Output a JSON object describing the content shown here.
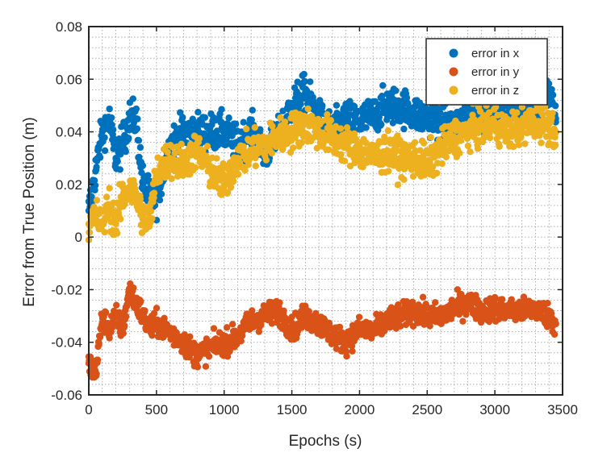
{
  "chart_data": {
    "type": "scatter",
    "title": "",
    "xlabel": "Epochs (s)",
    "ylabel": "Error from True Position (m)",
    "xlim": [
      0,
      3500
    ],
    "ylim": [
      -0.06,
      0.08
    ],
    "xticks": [
      0,
      500,
      1000,
      1500,
      2000,
      2500,
      3000,
      3500
    ],
    "xtick_labels": [
      "0",
      "500",
      "1000",
      "1500",
      "2000",
      "2500",
      "3000",
      "3500"
    ],
    "yticks": [
      -0.06,
      -0.04,
      -0.02,
      0,
      0.02,
      0.04,
      0.06,
      0.08
    ],
    "ytick_labels": [
      "-0.06",
      "-0.04",
      "-0.02",
      "0",
      "0.02",
      "0.04",
      "0.06",
      "0.08"
    ],
    "grid": "dotted, major and minor",
    "legend_position": "top-right",
    "series": [
      {
        "name": "error in x",
        "color": "#0072BD",
        "x": [
          0,
          50,
          100,
          150,
          200,
          250,
          300,
          350,
          400,
          450,
          500,
          600,
          700,
          800,
          900,
          1000,
          1100,
          1200,
          1300,
          1400,
          1500,
          1600,
          1700,
          1800,
          1900,
          2000,
          2100,
          2200,
          2300,
          2400,
          2500,
          2600,
          2700,
          2800,
          2900,
          3000,
          3100,
          3200,
          3300,
          3400,
          3450
        ],
        "y": [
          0.01,
          0.025,
          0.04,
          0.045,
          0.03,
          0.035,
          0.045,
          0.045,
          0.02,
          0.015,
          0.015,
          0.035,
          0.04,
          0.04,
          0.04,
          0.04,
          0.035,
          0.04,
          0.032,
          0.038,
          0.05,
          0.055,
          0.045,
          0.04,
          0.045,
          0.044,
          0.046,
          0.05,
          0.05,
          0.047,
          0.045,
          0.045,
          0.042,
          0.047,
          0.048,
          0.05,
          0.05,
          0.05,
          0.05,
          0.055,
          0.045
        ]
      },
      {
        "name": "error in y",
        "color": "#D95319",
        "x": [
          0,
          50,
          100,
          150,
          200,
          250,
          300,
          350,
          400,
          450,
          500,
          600,
          700,
          800,
          900,
          1000,
          1100,
          1200,
          1300,
          1400,
          1500,
          1600,
          1700,
          1800,
          1900,
          2000,
          2100,
          2200,
          2300,
          2400,
          2500,
          2600,
          2700,
          2800,
          2900,
          3000,
          3100,
          3200,
          3300,
          3400,
          3450
        ],
        "y": [
          -0.048,
          -0.052,
          -0.03,
          -0.035,
          -0.03,
          -0.035,
          -0.02,
          -0.025,
          -0.03,
          -0.035,
          -0.033,
          -0.036,
          -0.04,
          -0.045,
          -0.042,
          -0.04,
          -0.038,
          -0.032,
          -0.03,
          -0.028,
          -0.035,
          -0.03,
          -0.033,
          -0.037,
          -0.04,
          -0.035,
          -0.036,
          -0.032,
          -0.03,
          -0.028,
          -0.03,
          -0.03,
          -0.027,
          -0.025,
          -0.028,
          -0.027,
          -0.028,
          -0.028,
          -0.027,
          -0.03,
          -0.033
        ]
      },
      {
        "name": "error in z",
        "color": "#EDB120",
        "x": [
          0,
          50,
          100,
          150,
          200,
          250,
          300,
          350,
          400,
          450,
          500,
          600,
          700,
          800,
          900,
          1000,
          1100,
          1200,
          1300,
          1400,
          1500,
          1600,
          1700,
          1800,
          1900,
          2000,
          2100,
          2200,
          2300,
          2400,
          2500,
          2600,
          2700,
          2800,
          2900,
          3000,
          3100,
          3200,
          3300,
          3400,
          3450
        ],
        "y": [
          0.005,
          0.008,
          0.005,
          0.012,
          0.005,
          0.015,
          0.018,
          0.015,
          0.008,
          0.005,
          0.025,
          0.03,
          0.028,
          0.033,
          0.025,
          0.02,
          0.03,
          0.033,
          0.035,
          0.038,
          0.04,
          0.043,
          0.04,
          0.038,
          0.035,
          0.033,
          0.03,
          0.032,
          0.03,
          0.03,
          0.028,
          0.033,
          0.038,
          0.04,
          0.042,
          0.043,
          0.04,
          0.042,
          0.044,
          0.043,
          0.04
        ]
      }
    ]
  }
}
